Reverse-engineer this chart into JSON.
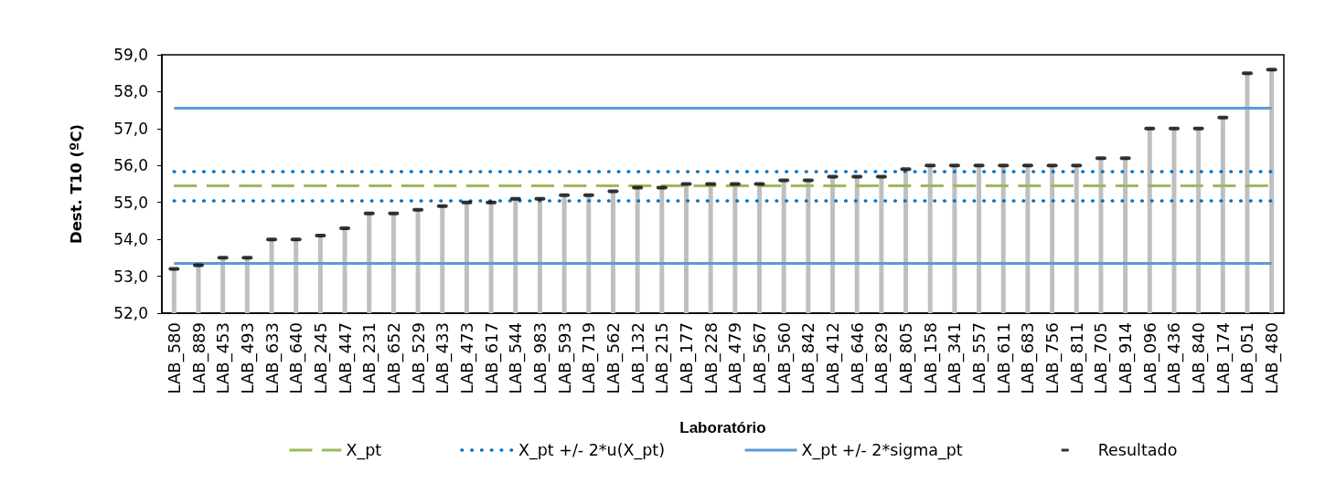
{
  "chart_data": {
    "type": "bar",
    "xlabel": "Laboratório",
    "ylabel": "Dest. T10 (ºC)",
    "categories": [
      "LAB_580",
      "LAB_889",
      "LAB_453",
      "LAB_493",
      "LAB_633",
      "LAB_640",
      "LAB_245",
      "LAB_447",
      "LAB_231",
      "LAB_652",
      "LAB_529",
      "LAB_433",
      "LAB_473",
      "LAB_617",
      "LAB_544",
      "LAB_983",
      "LAB_593",
      "LAB_719",
      "LAB_562",
      "LAB_132",
      "LAB_215",
      "LAB_177",
      "LAB_228",
      "LAB_479",
      "LAB_567",
      "LAB_560",
      "LAB_842",
      "LAB_412",
      "LAB_646",
      "LAB_829",
      "LAB_805",
      "LAB_158",
      "LAB_341",
      "LAB_557",
      "LAB_611",
      "LAB_683",
      "LAB_756",
      "LAB_811",
      "LAB_705",
      "LAB_914",
      "LAB_096",
      "LAB_436",
      "LAB_840",
      "LAB_174",
      "LAB_051",
      "LAB_480"
    ],
    "series": [
      {
        "color": "#bfbfbf",
        "values": [
          53.2,
          53.3,
          53.5,
          53.5,
          54.0,
          54.0,
          54.1,
          54.3,
          54.7,
          54.7,
          54.8,
          54.9,
          55.0,
          55.0,
          55.1,
          55.1,
          55.2,
          55.2,
          55.3,
          55.4,
          55.4,
          55.5,
          55.5,
          55.5,
          55.5,
          55.6,
          55.6,
          55.7,
          55.7,
          55.7,
          55.9,
          56.0,
          56.0,
          56.0,
          56.0,
          56.0,
          56.0,
          56.0,
          56.2,
          56.2,
          57.0,
          57.0,
          57.0,
          57.3,
          58.5,
          58.6
        ]
      },
      {
        "type": "scatter",
        "name": "Resultado",
        "color": "#000000",
        "x": [
          "LAB_580",
          "LAB_889",
          "LAB_453",
          "LAB_493",
          "LAB_633",
          "LAB_640",
          "LAB_245",
          "LAB_447",
          "LAB_231",
          "LAB_652",
          "LAB_529",
          "LAB_433",
          "LAB_473",
          "LAB_617",
          "LAB_544",
          "LAB_983",
          "LAB_593",
          "LAB_719",
          "LAB_562",
          "LAB_132",
          "LAB_215",
          "LAB_177",
          "LAB_228",
          "LAB_479",
          "LAB_567",
          "LAB_560",
          "LAB_842",
          "LAB_412",
          "LAB_646",
          "LAB_829",
          "LAB_805",
          "LAB_158",
          "LAB_341",
          "LAB_557",
          "LAB_611",
          "LAB_683",
          "LAB_756",
          "LAB_811",
          "LAB_705",
          "LAB_914",
          "LAB_096",
          "LAB_436",
          "LAB_840",
          "LAB_174",
          "LAB_051",
          "LAB_480"
        ],
        "values": [
          53.2,
          53.3,
          53.5,
          53.5,
          54.0,
          54.0,
          54.1,
          54.3,
          54.7,
          54.7,
          54.8,
          54.9,
          55.0,
          55.0,
          55.1,
          55.1,
          55.2,
          55.2,
          55.3,
          55.4,
          55.4,
          55.5,
          55.5,
          55.5,
          55.5,
          55.6,
          55.6,
          55.7,
          55.7,
          55.7,
          55.9,
          56.0,
          56.0,
          56.0,
          56.0,
          56.0,
          56.0,
          56.0,
          56.2,
          56.2,
          57.0,
          57.0,
          57.0,
          57.3,
          58.5,
          58.6
        ]
      }
    ],
    "ylim": [
      52,
      59
    ],
    "yticks": [
      {
        "value": 52,
        "label": "52,0"
      },
      {
        "value": 53,
        "label": "53,0"
      },
      {
        "value": 54,
        "label": "54,0"
      },
      {
        "value": 55,
        "label": "55,0"
      },
      {
        "value": 56,
        "label": "56,0"
      },
      {
        "value": 57,
        "label": "57,0"
      },
      {
        "value": 58,
        "label": "58,0"
      },
      {
        "value": 59,
        "label": "59,0"
      }
    ],
    "ref_lines": [
      {
        "axis": "y",
        "value": 55.45,
        "label": "X_pt",
        "color": "#9bbb59",
        "line_style": "dashed"
      },
      {
        "axis": "y",
        "value": 55.85,
        "label": "X_pt +/- 2*u(X_pt)",
        "color": "#0070c0",
        "line_style": "dotted"
      },
      {
        "axis": "y",
        "value": 55.05,
        "color": "#0070c0",
        "line_style": "dotted"
      },
      {
        "axis": "y",
        "value": 57.55,
        "label": "X_pt +/- 2*sigma_pt",
        "color": "#5b9bd5",
        "line_style": "solid"
      },
      {
        "axis": "y",
        "value": 53.35,
        "color": "#5b9bd5",
        "line_style": "solid"
      }
    ],
    "legend": "bottom"
  }
}
